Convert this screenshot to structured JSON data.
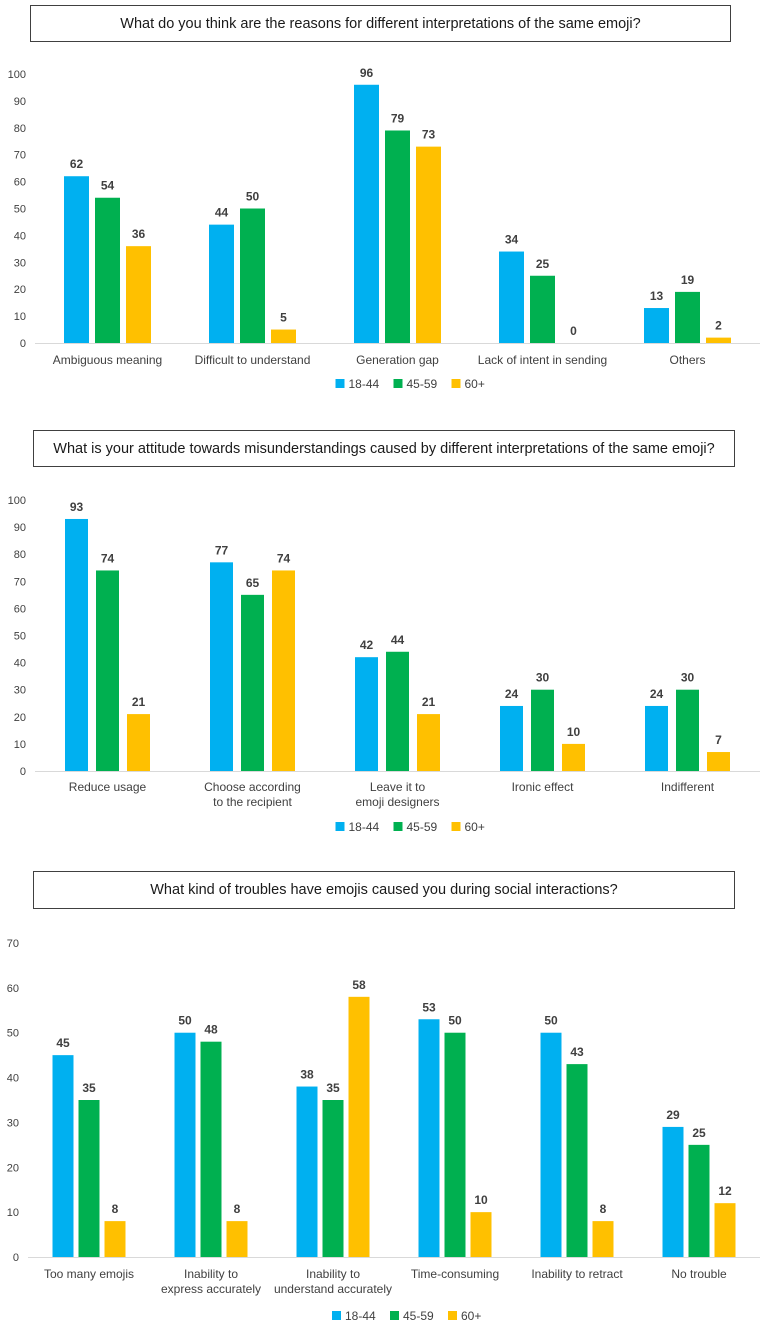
{
  "colors": {
    "18-44": "#00B0F0",
    "45-59": "#00B050",
    "60+": "#FFC000"
  },
  "chart_data": [
    {
      "type": "bar",
      "title": "What do you think are the reasons for different interpretations of the same emoji?",
      "categories": [
        [
          "Ambiguous meaning"
        ],
        [
          "Difficult to understand"
        ],
        [
          "Generation gap"
        ],
        [
          "Lack of intent in sending"
        ],
        [
          "Others"
        ]
      ],
      "series": [
        {
          "name": "18-44",
          "values": [
            62,
            44,
            96,
            34,
            13
          ]
        },
        {
          "name": "45-59",
          "values": [
            54,
            50,
            79,
            25,
            19
          ]
        },
        {
          "name": "60+",
          "values": [
            36,
            5,
            73,
            0,
            2
          ]
        }
      ],
      "ylim": [
        0,
        100
      ],
      "yticks": [
        0,
        10,
        20,
        30,
        40,
        50,
        60,
        70,
        80,
        90,
        100
      ],
      "xlabel": "",
      "ylabel": "",
      "legend": "bottom-center"
    },
    {
      "type": "bar",
      "title": "What is your attitude towards misunderstandings caused by different interpretations of the same emoji?",
      "categories": [
        [
          "Reduce usage"
        ],
        [
          "Choose according",
          "to the recipient"
        ],
        [
          "Leave it to",
          "emoji designers"
        ],
        [
          "Ironic effect"
        ],
        [
          "Indifferent"
        ]
      ],
      "series": [
        {
          "name": "18-44",
          "values": [
            93,
            77,
            42,
            24,
            24
          ]
        },
        {
          "name": "45-59",
          "values": [
            74,
            65,
            44,
            30,
            30
          ]
        },
        {
          "name": "60+",
          "values": [
            21,
            74,
            21,
            10,
            7
          ]
        }
      ],
      "ylim": [
        0,
        100
      ],
      "yticks": [
        0,
        10,
        20,
        30,
        40,
        50,
        60,
        70,
        80,
        90,
        100
      ],
      "xlabel": "",
      "ylabel": "",
      "legend": "bottom-center"
    },
    {
      "type": "bar",
      "title": "What kind of troubles have emojis caused you during social interactions?",
      "categories": [
        [
          "Too many emojis"
        ],
        [
          "Inability to",
          "express accurately"
        ],
        [
          "Inability to",
          "understand accurately"
        ],
        [
          "Time-consuming"
        ],
        [
          "Inability to retract"
        ],
        [
          "No trouble"
        ]
      ],
      "series": [
        {
          "name": "18-44",
          "values": [
            45,
            50,
            38,
            53,
            50,
            29
          ]
        },
        {
          "name": "45-59",
          "values": [
            35,
            48,
            35,
            50,
            43,
            25
          ]
        },
        {
          "name": "60+",
          "values": [
            8,
            8,
            58,
            10,
            8,
            12
          ]
        }
      ],
      "ylim": [
        0,
        70
      ],
      "yticks": [
        0,
        10,
        20,
        30,
        40,
        50,
        60,
        70
      ],
      "xlabel": "",
      "ylabel": "",
      "legend": "bottom-center"
    }
  ]
}
